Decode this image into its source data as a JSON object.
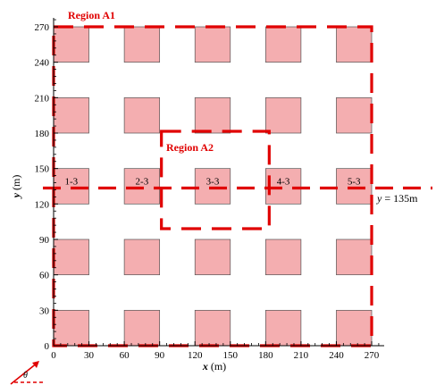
{
  "figure": {
    "x_axis": {
      "title_var": "x",
      "title_unit": " (m)",
      "range": [
        0,
        270
      ],
      "ticks": [
        0,
        30,
        60,
        90,
        120,
        150,
        180,
        210,
        240,
        270
      ]
    },
    "y_axis": {
      "title_var": "y",
      "title_unit": " (m)",
      "range": [
        0,
        270
      ],
      "ticks": [
        0,
        30,
        60,
        90,
        120,
        150,
        180,
        210,
        240,
        270
      ]
    },
    "block": {
      "color": "#f4aeb0",
      "edge_color": "#555555",
      "x_starts": [
        0,
        60,
        120,
        180,
        240
      ],
      "y_starts": [
        0,
        60,
        120,
        180,
        240
      ],
      "size": 30
    },
    "row_labels": {
      "y_start": 120,
      "items": [
        {
          "text": "1-3",
          "x_start": 0
        },
        {
          "text": "2-3",
          "x_start": 60
        },
        {
          "text": "3-3",
          "x_start": 120
        },
        {
          "text": "4-3",
          "x_start": 180
        },
        {
          "text": "5-3",
          "x_start": 240
        }
      ]
    },
    "region_a1": {
      "label": "Region A1",
      "x_range": [
        0,
        270
      ],
      "y_range": [
        0,
        270
      ],
      "color": "#e00000"
    },
    "region_a2": {
      "label": "Region A2",
      "x_range": [
        90,
        180
      ],
      "y_range": [
        90,
        180
      ],
      "color": "#e00000"
    },
    "reference_line": {
      "y_value": 135,
      "label_var": "y",
      "label_rest": " = 135m",
      "color": "#e00000"
    },
    "wind_direction": {
      "label": "θ",
      "color": "#e00000"
    }
  }
}
